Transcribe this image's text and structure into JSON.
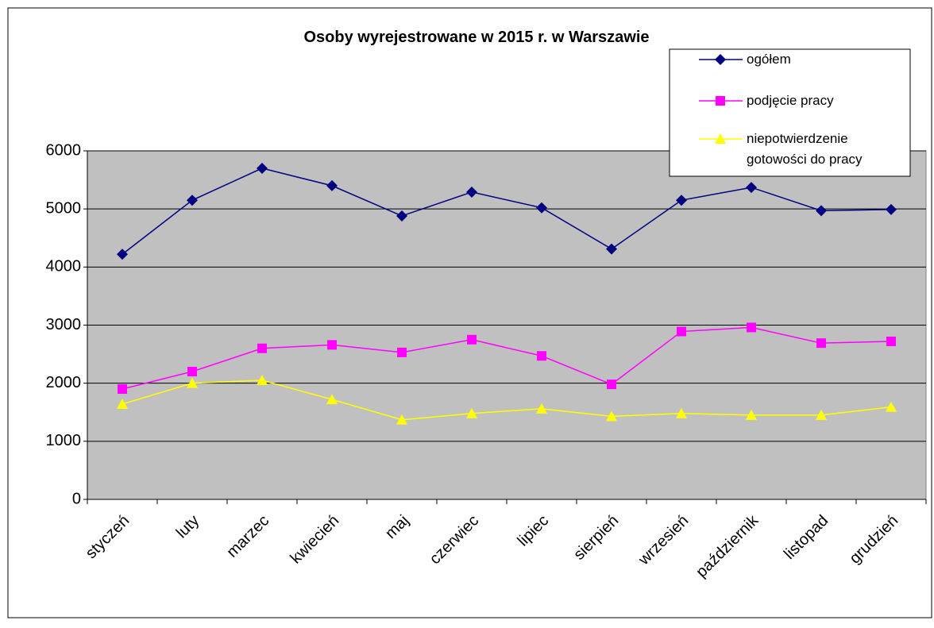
{
  "chart_data": {
    "type": "line",
    "title": "Osoby wyrejestrowane w 2015 r. w Warszawie",
    "categories": [
      "styczeń",
      "luty",
      "marzec",
      "kwiecień",
      "maj",
      "czerwiec",
      "lipiec",
      "sierpień",
      "wrzesień",
      "październik",
      "listopad",
      "grudzień"
    ],
    "series": [
      {
        "name": "ogółem",
        "color": "#000080",
        "marker": "diamond",
        "values": [
          4220,
          5150,
          5700,
          5400,
          4880,
          5290,
          5020,
          4310,
          5150,
          5370,
          4970,
          4990
        ]
      },
      {
        "name": "podjęcie pracy",
        "color": "#ff00ff",
        "marker": "square",
        "values": [
          1900,
          2200,
          2600,
          2660,
          2530,
          2750,
          2470,
          1980,
          2890,
          2960,
          2690,
          2720
        ]
      },
      {
        "name": "niepotwierdzenie gotowości do pracy",
        "color": "#ffff00",
        "marker": "triangle",
        "values": [
          1640,
          2000,
          2050,
          1720,
          1370,
          1480,
          1560,
          1430,
          1480,
          1450,
          1450,
          1590
        ]
      }
    ],
    "ylim": [
      0,
      6000
    ],
    "yticks": [
      0,
      1000,
      2000,
      3000,
      4000,
      5000,
      6000
    ],
    "grid": true,
    "legend": "top-right",
    "plot_background": "#c0c0c0"
  }
}
